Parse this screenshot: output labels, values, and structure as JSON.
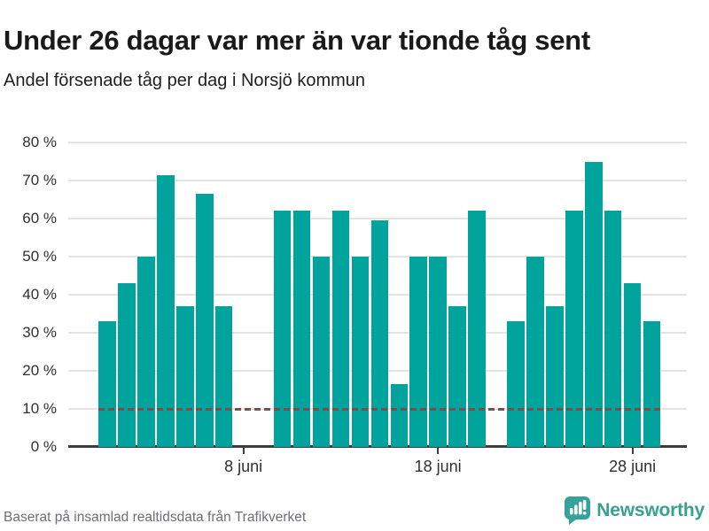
{
  "header": {
    "title": "Under 26 dagar var mer än var tionde tåg sent",
    "subtitle": "Andel försenade tåg per dag i Norsjö kommun"
  },
  "footer": {
    "source": "Baserat på insamlad realtidsdata från Trafikverket"
  },
  "brand": {
    "name": "Newsworthy",
    "icon": "newsworthy-speech-bubble-chart-icon",
    "color": "#3aa08f",
    "icon_color": "#35a29c"
  },
  "chart_data": {
    "type": "bar",
    "title": "Andel försenade tåg per dag i Norsjö kommun",
    "unit": "%",
    "month_label": "juni",
    "bar_color": "#00a49c",
    "grid_color": "#e4e4e4",
    "axis_color": "#3d3d3d",
    "reference_line": {
      "value": 10,
      "style": "dashed",
      "color": "#76504f"
    },
    "ylim": [
      0,
      80
    ],
    "grid": true,
    "y_ticks": [
      {
        "value": 0,
        "label": "0 %"
      },
      {
        "value": 10,
        "label": "10 %"
      },
      {
        "value": 20,
        "label": "20 %"
      },
      {
        "value": 30,
        "label": "30 %"
      },
      {
        "value": 40,
        "label": "40 %"
      },
      {
        "value": 50,
        "label": "50 %"
      },
      {
        "value": 60,
        "label": "60 %"
      },
      {
        "value": 70,
        "label": "70 %"
      },
      {
        "value": 80,
        "label": "80 %"
      }
    ],
    "x_ticks": [
      {
        "day": 8,
        "label": "8 juni"
      },
      {
        "day": 18,
        "label": "18 juni"
      },
      {
        "day": 28,
        "label": "28 juni"
      }
    ],
    "points": [
      {
        "day": 1,
        "value": 33
      },
      {
        "day": 2,
        "value": 43
      },
      {
        "day": 3,
        "value": 50
      },
      {
        "day": 4,
        "value": 71.4
      },
      {
        "day": 5,
        "value": 37
      },
      {
        "day": 6,
        "value": 66.5
      },
      {
        "day": 7,
        "value": 37
      },
      {
        "day": 10,
        "value": 62
      },
      {
        "day": 11,
        "value": 62
      },
      {
        "day": 12,
        "value": 50
      },
      {
        "day": 13,
        "value": 62
      },
      {
        "day": 14,
        "value": 50
      },
      {
        "day": 15,
        "value": 59.5
      },
      {
        "day": 16,
        "value": 16.5
      },
      {
        "day": 17,
        "value": 50
      },
      {
        "day": 18,
        "value": 50
      },
      {
        "day": 19,
        "value": 37
      },
      {
        "day": 20,
        "value": 62
      },
      {
        "day": 22,
        "value": 33
      },
      {
        "day": 23,
        "value": 50
      },
      {
        "day": 24,
        "value": 37
      },
      {
        "day": 25,
        "value": 62
      },
      {
        "day": 26,
        "value": 75
      },
      {
        "day": 27,
        "value": 62
      },
      {
        "day": 28,
        "value": 43
      },
      {
        "day": 29,
        "value": 33
      }
    ]
  }
}
